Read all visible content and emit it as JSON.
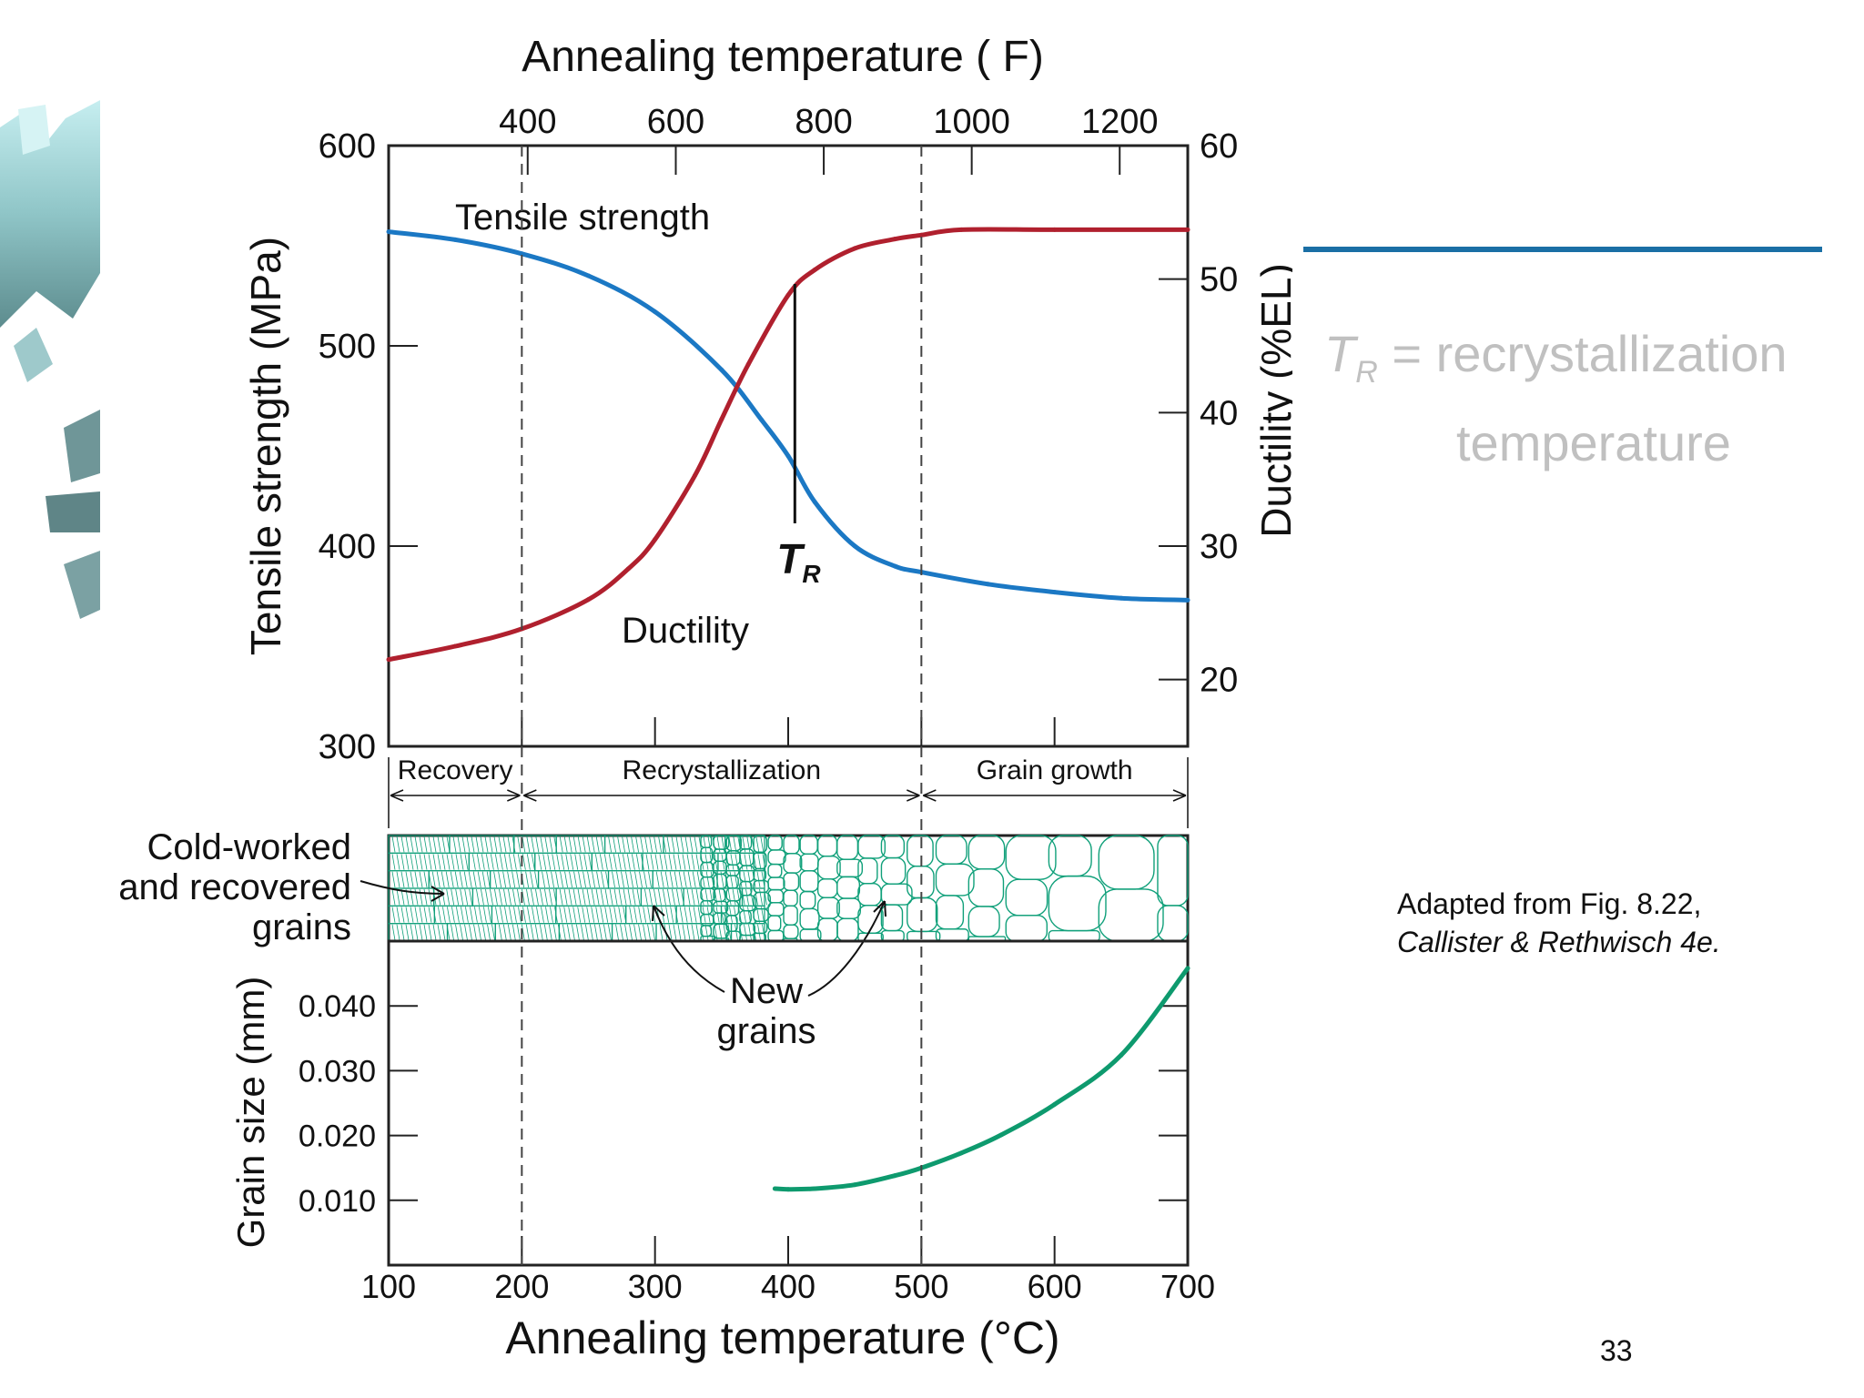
{
  "slide": {
    "page_number": "33",
    "source_line1": "Adapted from Fig. 8.22,",
    "source_line2": "Callister & Rethwisch 4e.",
    "note": {
      "symbol": "T",
      "subscript": "R",
      "text_line1": " = recrystallization",
      "text_line2": "temperature"
    },
    "colors": {
      "accent_rule": "#1a6fa5",
      "note_text": "#c0c0c0",
      "tensile_curve": "#1b78c4",
      "ductility_curve": "#b0202e",
      "grain_curve": "#0e9a6e",
      "microstructure": "#10a07a"
    }
  },
  "chart_data": [
    {
      "type": "line",
      "title": "",
      "x_top_axis": {
        "label": "Annealing temperature ( F)",
        "ticks": [
          "400",
          "600",
          "800",
          "1000",
          "1200"
        ],
        "tick_values_c": [
          204.4,
          315.6,
          426.7,
          537.8,
          648.9
        ]
      },
      "xlabel": "Annealing temperature (°C)",
      "xlim": [
        100,
        700
      ],
      "x_ticks": [
        "100",
        "200",
        "300",
        "400",
        "500",
        "600",
        "700"
      ],
      "ylabel_left": "Tensile strength (MPa)",
      "ylim_left": [
        300,
        600
      ],
      "y_ticks_left": [
        "300",
        "400",
        "500",
        "600"
      ],
      "ylabel_right": "Ductility (%EL)",
      "ylim_right": [
        15,
        60
      ],
      "y_ticks_right": [
        "20",
        "30",
        "40",
        "50",
        "60"
      ],
      "series": [
        {
          "name": "Tensile strength",
          "axis": "left",
          "color": "#1b78c4",
          "x": [
            100,
            150,
            200,
            250,
            300,
            350,
            380,
            400,
            420,
            450,
            480,
            500,
            550,
            600,
            650,
            700
          ],
          "y": [
            557,
            553,
            546,
            535,
            517,
            488,
            463,
            445,
            422,
            400,
            390,
            387,
            381,
            377,
            374,
            373
          ]
        },
        {
          "name": "Ductility",
          "axis": "right",
          "color": "#b0202e",
          "x": [
            100,
            150,
            200,
            250,
            280,
            300,
            330,
            350,
            370,
            400,
            420,
            450,
            480,
            500,
            530,
            600,
            700
          ],
          "y": [
            21.5,
            22.5,
            23.8,
            26,
            28.3,
            30.5,
            35.3,
            39.5,
            43.6,
            48.8,
            50.7,
            52.3,
            53.0,
            53.3,
            53.7,
            53.7,
            53.7
          ]
        }
      ],
      "vertical_lines": [
        200,
        500
      ],
      "annotations": {
        "tr_marker": {
          "x": 405,
          "label": "T",
          "subscript": "R"
        },
        "tensile_label": "Tensile strength",
        "ductility_label": "Ductility"
      },
      "grid": false
    },
    {
      "type": "line",
      "title": "",
      "xlabel": "Annealing temperature (°C)",
      "xlim": [
        100,
        700
      ],
      "x_ticks": [
        "100",
        "200",
        "300",
        "400",
        "500",
        "600",
        "700"
      ],
      "ylabel": "Grain size (mm)",
      "ylim": [
        0,
        0.05
      ],
      "y_ticks": [
        "0.010",
        "0.020",
        "0.030",
        "0.040"
      ],
      "y_tick_values": [
        0.01,
        0.02,
        0.03,
        0.04
      ],
      "series": [
        {
          "name": "",
          "color": "#0e9a6e",
          "x": [
            390,
            400,
            420,
            450,
            480,
            500,
            530,
            560,
            600,
            650,
            700
          ],
          "y": [
            0.0118,
            0.0117,
            0.0118,
            0.0124,
            0.0138,
            0.015,
            0.0173,
            0.0201,
            0.0248,
            0.0324,
            0.0458
          ]
        }
      ],
      "grid": false
    }
  ],
  "stages": [
    {
      "label": "Recovery",
      "from": 100,
      "to": 200
    },
    {
      "label": "Recrystallization",
      "from": 200,
      "to": 500
    },
    {
      "label": "Grain growth",
      "from": 500,
      "to": 700
    }
  ],
  "microstructure": {
    "cold_worked_label": [
      "Cold-worked",
      "and recovered",
      "grains"
    ],
    "new_grains_label": [
      "New",
      "grains"
    ]
  }
}
